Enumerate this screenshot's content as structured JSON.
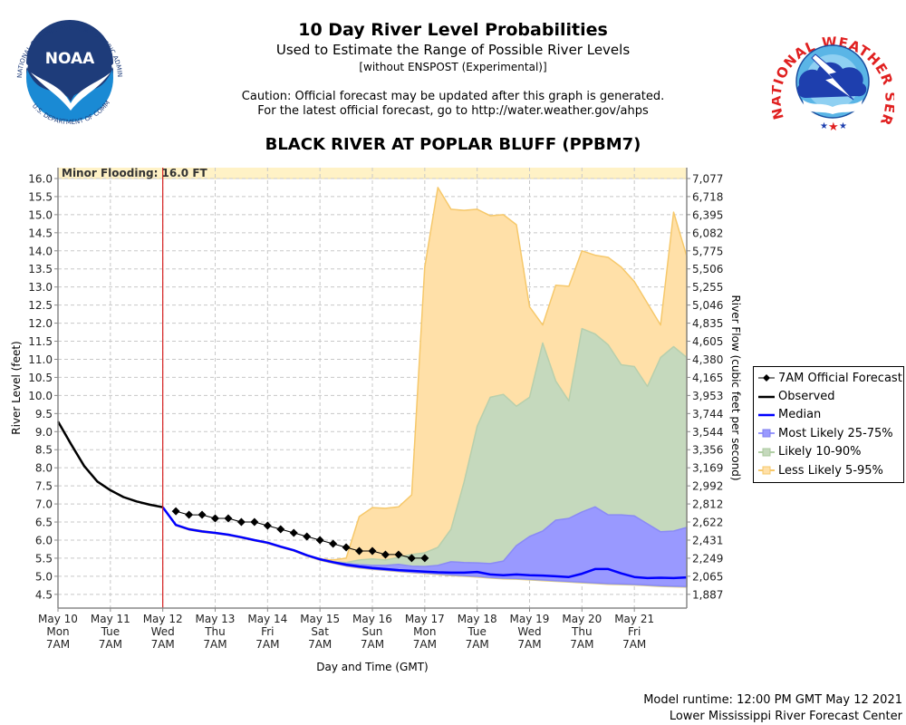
{
  "header": {
    "title": "10 Day River Level Probabilities",
    "subtitle": "Used to Estimate the Range of Possible River Levels",
    "subtitle2": "[without ENSPOST (Experimental)]",
    "caution_line1": "Caution: Official forecast may be updated after this graph is generated.",
    "caution_line2": "For the latest official forecast, go to http://water.weather.gov/ahps",
    "station": "BLACK RIVER AT POPLAR BLUFF (PPBM7)"
  },
  "logos": {
    "left": {
      "name": "NOAA",
      "ring_text": "NATIONAL OCEANIC AND ATMOSPHERIC ADMINISTRATION",
      "bottom_text": "U.S. DEPARTMENT OF COMMERCE"
    },
    "right": {
      "name": "NATIONAL WEATHER SERVICE"
    }
  },
  "footer": {
    "model_runtime": "Model runtime: 12:00 PM GMT May 12 2021",
    "center": "Lower Mississippi River Forecast Center"
  },
  "chart_data": {
    "type": "area",
    "title": "10 Day River Level Probabilities",
    "xlabel": "Day and Time (GMT)",
    "ylabel": "River Level (feet)",
    "y2label": "River Flow (cubic feet per second)",
    "x_unit": "hours since May 10 7AM GMT",
    "xlim": [
      0,
      288
    ],
    "ylim": [
      4.12,
      16.3
    ],
    "grid": true,
    "legend_position": "right",
    "flood_stage": {
      "label": "Minor Flooding: 16.0 FT",
      "value": 16.0,
      "color": "#fff2c6"
    },
    "now_marker": {
      "x": 48,
      "color": "#d62020"
    },
    "x_ticks": [
      {
        "x": 0,
        "lines": [
          "May 10",
          "Mon",
          "7AM"
        ]
      },
      {
        "x": 24,
        "lines": [
          "May 11",
          "Tue",
          "7AM"
        ]
      },
      {
        "x": 48,
        "lines": [
          "May 12",
          "Wed",
          "7AM"
        ]
      },
      {
        "x": 72,
        "lines": [
          "May 13",
          "Thu",
          "7AM"
        ]
      },
      {
        "x": 96,
        "lines": [
          "May 14",
          "Fri",
          "7AM"
        ]
      },
      {
        "x": 120,
        "lines": [
          "May 15",
          "Sat",
          "7AM"
        ]
      },
      {
        "x": 144,
        "lines": [
          "May 16",
          "Sun",
          "7AM"
        ]
      },
      {
        "x": 168,
        "lines": [
          "May 17",
          "Mon",
          "7AM"
        ]
      },
      {
        "x": 192,
        "lines": [
          "May 18",
          "Tue",
          "7AM"
        ]
      },
      {
        "x": 216,
        "lines": [
          "May 19",
          "Wed",
          "7AM"
        ]
      },
      {
        "x": 240,
        "lines": [
          "May 20",
          "Thu",
          "7AM"
        ]
      },
      {
        "x": 264,
        "lines": [
          "May 21",
          "Fri",
          "7AM"
        ]
      }
    ],
    "y_ticks": [
      "4.5",
      "5.0",
      "5.5",
      "6.0",
      "6.5",
      "7.0",
      "7.5",
      "8.0",
      "8.5",
      "9.0",
      "9.5",
      "10.0",
      "10.5",
      "11.0",
      "11.5",
      "12.0",
      "12.5",
      "13.0",
      "13.5",
      "14.0",
      "14.5",
      "15.0",
      "15.5",
      "16.0"
    ],
    "y2_ticks": [
      "1,887",
      "2,065",
      "2,249",
      "2,431",
      "2,622",
      "2,812",
      "2,992",
      "3,169",
      "3,356",
      "3,544",
      "3,744",
      "3,953",
      "4,165",
      "4,380",
      "4,605",
      "4,835",
      "5,046",
      "5,255",
      "5,506",
      "5,775",
      "6,082",
      "6,395",
      "6,718",
      "7,077"
    ],
    "legend": [
      {
        "label": "7AM Official Forecast",
        "symbol": "diamond-line",
        "color": "#000000"
      },
      {
        "label": "Observed",
        "symbol": "line",
        "color": "#000000"
      },
      {
        "label": "Median",
        "symbol": "line",
        "color": "#0000ff"
      },
      {
        "label": "Most Likely 25-75%",
        "symbol": "box",
        "color": "#9999ff"
      },
      {
        "label": "Likely 10-90%",
        "symbol": "box",
        "color": "#c5d9bd"
      },
      {
        "label": "Less Likely 5-95%",
        "symbol": "box",
        "color": "#ffe0a8"
      }
    ],
    "series": [
      {
        "name": "Observed",
        "kind": "line",
        "color": "#000000",
        "x": [
          0,
          6,
          12,
          18,
          24,
          30,
          36,
          42,
          48
        ],
        "y": [
          9.28,
          8.65,
          8.05,
          7.62,
          7.38,
          7.19,
          7.07,
          6.98,
          6.91
        ]
      },
      {
        "name": "7AM Official Forecast",
        "kind": "diamond-line",
        "color": "#000000",
        "x": [
          54,
          60,
          66,
          72,
          78,
          84,
          90,
          96,
          102,
          108,
          114,
          120,
          126,
          132,
          138,
          144,
          150,
          156,
          162,
          168
        ],
        "y": [
          6.8,
          6.7,
          6.7,
          6.6,
          6.6,
          6.5,
          6.5,
          6.4,
          6.3,
          6.2,
          6.1,
          6.0,
          5.9,
          5.8,
          5.7,
          5.7,
          5.6,
          5.6,
          5.5,
          5.5
        ]
      },
      {
        "name": "Median",
        "kind": "line",
        "color": "#0000ff",
        "x": [
          48,
          54,
          60,
          66,
          72,
          78,
          84,
          90,
          96,
          102,
          108,
          114,
          120,
          126,
          132,
          138,
          144,
          150,
          156,
          162,
          168,
          174,
          180,
          186,
          192,
          198,
          204,
          210,
          216,
          222,
          228,
          234,
          240,
          246,
          252,
          258,
          264,
          270,
          276,
          282,
          288
        ],
        "y": [
          6.91,
          6.42,
          6.3,
          6.24,
          6.2,
          6.15,
          6.08,
          6.0,
          5.93,
          5.82,
          5.72,
          5.58,
          5.47,
          5.39,
          5.32,
          5.27,
          5.23,
          5.2,
          5.17,
          5.15,
          5.13,
          5.11,
          5.1,
          5.1,
          5.12,
          5.05,
          5.03,
          5.05,
          5.03,
          5.02,
          5.0,
          4.98,
          5.07,
          5.2,
          5.2,
          5.08,
          4.98,
          4.95,
          4.96,
          4.95,
          4.97
        ]
      },
      {
        "name": "Less Likely 5-95%",
        "kind": "band",
        "color": "#ffe0a8",
        "stroke": "#f6c86a",
        "x": [
          48,
          54,
          60,
          66,
          72,
          78,
          84,
          90,
          96,
          102,
          108,
          114,
          120,
          126,
          132,
          138,
          144,
          150,
          156,
          162,
          168,
          174,
          180,
          186,
          192,
          198,
          204,
          210,
          216,
          222,
          228,
          234,
          240,
          246,
          252,
          258,
          264,
          270,
          276,
          282,
          288
        ],
        "upper": [
          6.91,
          6.42,
          6.32,
          6.26,
          6.21,
          6.16,
          6.09,
          6.01,
          5.94,
          5.83,
          5.73,
          5.59,
          5.48,
          5.45,
          5.5,
          6.65,
          6.9,
          6.88,
          6.92,
          7.25,
          13.55,
          15.75,
          15.15,
          15.12,
          15.15,
          14.97,
          15.0,
          14.72,
          12.45,
          11.95,
          13.05,
          13.02,
          14.0,
          13.88,
          13.82,
          13.55,
          13.15,
          12.55,
          11.95,
          15.07,
          13.85
        ],
        "lower": [
          6.91,
          6.4,
          6.28,
          6.22,
          6.18,
          6.13,
          6.06,
          5.98,
          5.91,
          5.8,
          5.7,
          5.56,
          5.44,
          5.36,
          5.28,
          5.23,
          5.19,
          5.16,
          5.13,
          5.1,
          5.08,
          5.05,
          5.02,
          5.0,
          4.98,
          4.95,
          4.93,
          4.92,
          4.9,
          4.88,
          4.86,
          4.84,
          4.82,
          4.8,
          4.78,
          4.77,
          4.76,
          4.74,
          4.72,
          4.71,
          4.7
        ]
      },
      {
        "name": "Likely 10-90%",
        "kind": "band",
        "color": "#c5d9bd",
        "stroke": "#b7cfad",
        "x": [
          48,
          54,
          60,
          66,
          72,
          78,
          84,
          90,
          96,
          102,
          108,
          114,
          120,
          126,
          132,
          138,
          144,
          150,
          156,
          162,
          168,
          174,
          180,
          186,
          192,
          198,
          204,
          210,
          216,
          222,
          228,
          234,
          240,
          246,
          252,
          258,
          264,
          270,
          276,
          282,
          288
        ],
        "upper": [
          6.91,
          6.42,
          6.3,
          6.24,
          6.2,
          6.15,
          6.08,
          6.0,
          5.93,
          5.82,
          5.72,
          5.58,
          5.47,
          5.4,
          5.38,
          5.45,
          5.48,
          5.45,
          5.52,
          5.6,
          5.65,
          5.8,
          6.3,
          7.6,
          9.15,
          9.95,
          10.03,
          9.7,
          9.95,
          11.45,
          10.4,
          9.85,
          11.85,
          11.7,
          11.4,
          10.85,
          10.8,
          10.25,
          11.05,
          11.35,
          11.05
        ],
        "lower": [
          6.91,
          6.41,
          6.29,
          6.23,
          6.19,
          6.14,
          6.07,
          5.99,
          5.92,
          5.81,
          5.71,
          5.57,
          5.45,
          5.37,
          5.29,
          5.24,
          5.2,
          5.17,
          5.14,
          5.11,
          5.09,
          5.06,
          5.03,
          5.01,
          4.99,
          4.96,
          4.94,
          4.93,
          4.91,
          4.89,
          4.87,
          4.85,
          4.83,
          4.81,
          4.79,
          4.78,
          4.77,
          4.75,
          4.73,
          4.72,
          4.71
        ]
      },
      {
        "name": "Most Likely 25-75%",
        "kind": "band",
        "color": "#9999ff",
        "stroke": "#8a8af5",
        "x": [
          48,
          54,
          60,
          66,
          72,
          78,
          84,
          90,
          96,
          102,
          108,
          114,
          120,
          126,
          132,
          138,
          144,
          150,
          156,
          162,
          168,
          174,
          180,
          186,
          192,
          198,
          204,
          210,
          216,
          222,
          228,
          234,
          240,
          246,
          252,
          258,
          264,
          270,
          276,
          282,
          288
        ],
        "upper": [
          6.91,
          6.42,
          6.3,
          6.24,
          6.2,
          6.15,
          6.08,
          6.0,
          5.93,
          5.82,
          5.72,
          5.58,
          5.47,
          5.39,
          5.35,
          5.32,
          5.3,
          5.3,
          5.33,
          5.28,
          5.27,
          5.3,
          5.4,
          5.38,
          5.37,
          5.35,
          5.42,
          5.85,
          6.1,
          6.25,
          6.55,
          6.6,
          6.78,
          6.92,
          6.7,
          6.7,
          6.67,
          6.45,
          6.23,
          6.25,
          6.35
        ],
        "lower": [
          6.91,
          6.41,
          6.29,
          6.23,
          6.19,
          6.14,
          6.07,
          5.99,
          5.92,
          5.81,
          5.71,
          5.57,
          5.45,
          5.37,
          5.29,
          5.24,
          5.2,
          5.17,
          5.14,
          5.11,
          5.09,
          5.07,
          5.04,
          5.02,
          5.0,
          4.97,
          4.95,
          4.94,
          4.92,
          4.9,
          4.88,
          4.86,
          4.84,
          4.82,
          4.8,
          4.79,
          4.78,
          4.76,
          4.74,
          4.73,
          4.72
        ]
      }
    ]
  }
}
